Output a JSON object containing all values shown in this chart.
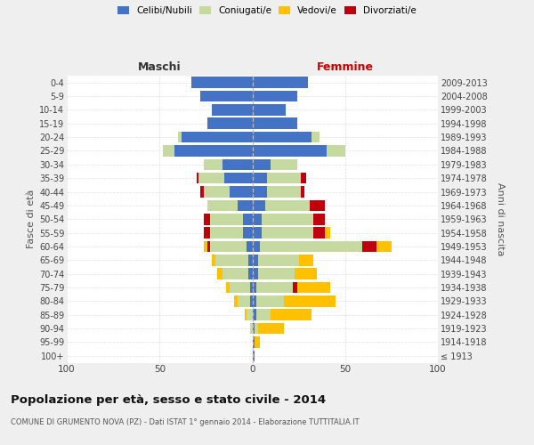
{
  "age_groups": [
    "100+",
    "95-99",
    "90-94",
    "85-89",
    "80-84",
    "75-79",
    "70-74",
    "65-69",
    "60-64",
    "55-59",
    "50-54",
    "45-49",
    "40-44",
    "35-39",
    "30-34",
    "25-29",
    "20-24",
    "15-19",
    "10-14",
    "5-9",
    "0-4"
  ],
  "birth_years": [
    "≤ 1913",
    "1914-1918",
    "1919-1923",
    "1924-1928",
    "1929-1933",
    "1934-1938",
    "1939-1943",
    "1944-1948",
    "1949-1953",
    "1954-1958",
    "1959-1963",
    "1964-1968",
    "1969-1973",
    "1974-1978",
    "1979-1983",
    "1984-1988",
    "1989-1993",
    "1994-1998",
    "1999-2003",
    "2004-2008",
    "2009-2013"
  ],
  "maschi_celibi": [
    0,
    0,
    0,
    0,
    1,
    1,
    2,
    2,
    3,
    5,
    5,
    8,
    12,
    15,
    16,
    42,
    38,
    24,
    22,
    28,
    33
  ],
  "maschi_coniugati": [
    0,
    0,
    1,
    3,
    7,
    11,
    14,
    18,
    20,
    18,
    18,
    16,
    14,
    14,
    10,
    6,
    2,
    0,
    0,
    0,
    0
  ],
  "maschi_vedovi": [
    0,
    0,
    0,
    1,
    2,
    2,
    3,
    2,
    2,
    0,
    0,
    0,
    0,
    0,
    0,
    0,
    0,
    0,
    0,
    0,
    0
  ],
  "maschi_divorziati": [
    0,
    0,
    0,
    0,
    0,
    0,
    0,
    0,
    1,
    3,
    3,
    0,
    2,
    1,
    0,
    0,
    0,
    0,
    0,
    0,
    0
  ],
  "femmine_nubili": [
    1,
    1,
    1,
    2,
    2,
    2,
    3,
    3,
    4,
    5,
    5,
    7,
    8,
    8,
    10,
    40,
    32,
    24,
    18,
    24,
    30
  ],
  "femmine_coniugate": [
    0,
    0,
    2,
    8,
    15,
    20,
    20,
    22,
    55,
    28,
    28,
    24,
    18,
    18,
    14,
    10,
    4,
    0,
    0,
    0,
    0
  ],
  "femmine_vedove": [
    0,
    3,
    14,
    22,
    28,
    18,
    12,
    8,
    8,
    3,
    0,
    0,
    0,
    0,
    0,
    0,
    0,
    0,
    0,
    0,
    0
  ],
  "femmine_divorziate": [
    0,
    0,
    0,
    0,
    0,
    2,
    0,
    0,
    8,
    6,
    6,
    8,
    2,
    3,
    0,
    0,
    0,
    0,
    0,
    0,
    0
  ],
  "color_celibi": "#4472c4",
  "color_coniugati": "#c5d9a0",
  "color_vedovi": "#ffc000",
  "color_divorziati": "#c0000c",
  "xlim": 100,
  "xticks": [
    -100,
    -50,
    0,
    50,
    100
  ],
  "title": "Popolazione per età, sesso e stato civile - 2014",
  "subtitle": "COMUNE DI GRUMENTO NOVA (PZ) - Dati ISTAT 1° gennaio 2014 - Elaborazione TUTTITALIA.IT",
  "ylabel_left": "Fasce di età",
  "ylabel_right": "Anni di nascita",
  "label_maschi": "Maschi",
  "label_femmine": "Femmine",
  "legend_labels": [
    "Celibi/Nubili",
    "Coniugati/e",
    "Vedovi/e",
    "Divorziati/e"
  ],
  "bg_color": "#efefef",
  "plot_bg_color": "#ffffff"
}
